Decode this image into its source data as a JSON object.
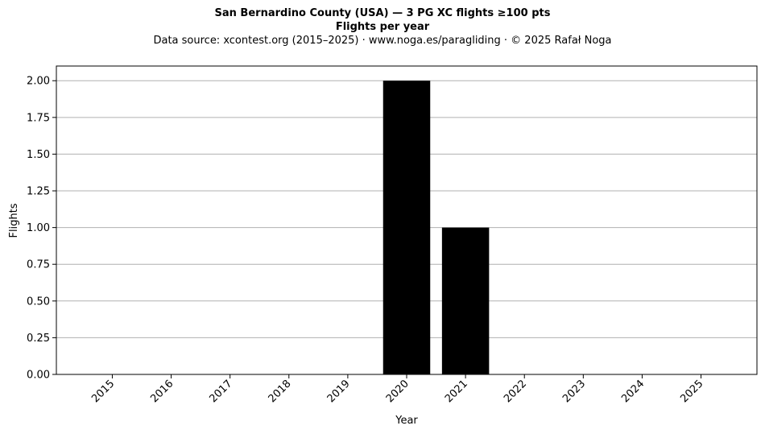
{
  "chart_data": {
    "type": "bar",
    "title": "San Bernardino County (USA)  —  3 PG XC flights ≥100 pts",
    "subtitle": "Flights per year",
    "source_line": "Data source: xcontest.org (2015–2025)  ·  www.noga.es/paragliding  ·  © 2025 Rafał Noga",
    "xlabel": "Year",
    "ylabel": "Flights",
    "categories": [
      "2015",
      "2016",
      "2017",
      "2018",
      "2019",
      "2020",
      "2021",
      "2022",
      "2023",
      "2024",
      "2025"
    ],
    "values": [
      0,
      0,
      0,
      0,
      0,
      2,
      1,
      0,
      0,
      0,
      0
    ],
    "ylim": [
      0,
      2.1
    ],
    "yticks": [
      "0.00",
      "0.25",
      "0.50",
      "0.75",
      "1.00",
      "1.25",
      "1.50",
      "1.75",
      "2.00"
    ],
    "grid": "y",
    "bar_color": "#000000",
    "grid_color": "#b0b0b0"
  }
}
